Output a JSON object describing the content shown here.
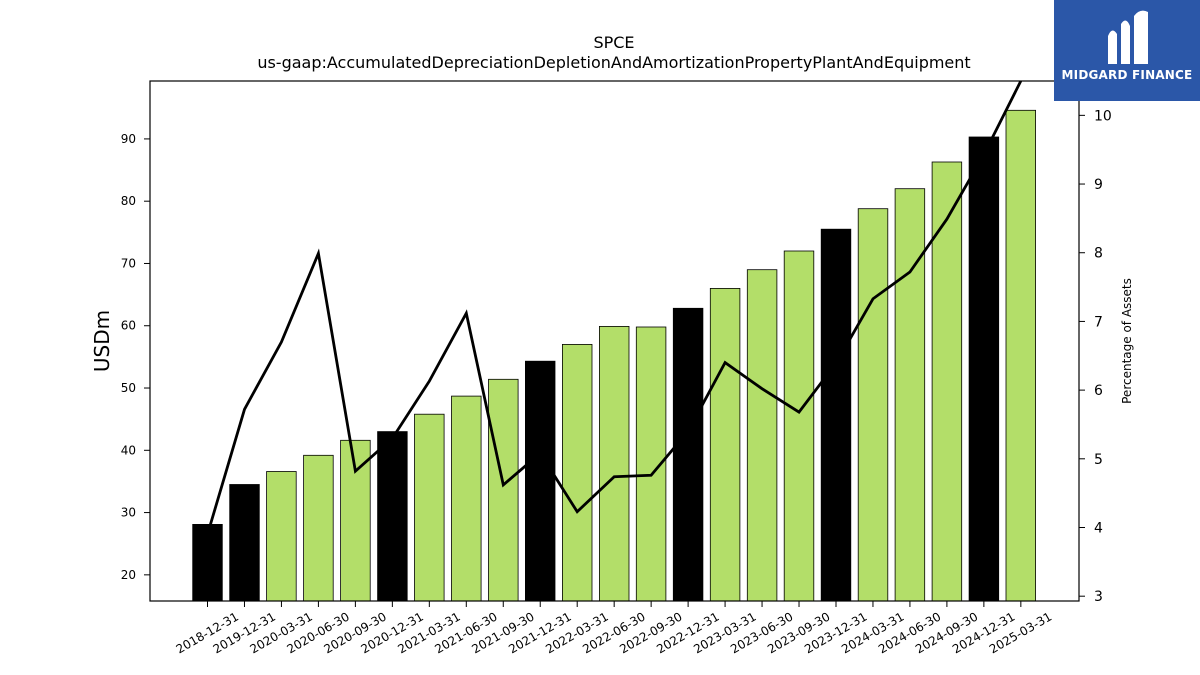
{
  "chart_data": {
    "type": "bar",
    "title": "SPCE",
    "subtitle": "us-gaap:AccumulatedDepreciationDepletionAndAmortizationPropertyPlantAndEquipment",
    "ylabel": "USDm",
    "y2label": "Percentage of Assets",
    "ylim": [
      15.8,
      99.3
    ],
    "y2lim": [
      2.93,
      10.5
    ],
    "yticks": [
      20,
      30,
      40,
      50,
      60,
      70,
      80,
      90
    ],
    "y2ticks": [
      3,
      4,
      5,
      6,
      7,
      8,
      9,
      10
    ],
    "categories": [
      "2018-12-31",
      "2019-12-31",
      "2020-03-31",
      "2020-06-30",
      "2020-09-30",
      "2020-12-31",
      "2021-03-31",
      "2021-06-30",
      "2021-09-30",
      "2021-12-31",
      "2022-03-31",
      "2022-06-30",
      "2022-09-30",
      "2022-12-31",
      "2023-03-31",
      "2023-06-30",
      "2023-09-30",
      "2023-12-31",
      "2024-03-31",
      "2024-06-30",
      "2024-09-30",
      "2024-12-31",
      "2025-03-31"
    ],
    "series": [
      {
        "kind": "bar",
        "values": [
          28.1,
          34.5,
          36.6,
          39.2,
          41.6,
          43.0,
          45.8,
          48.7,
          51.4,
          54.3,
          57.0,
          59.9,
          59.8,
          62.8,
          66.0,
          69.0,
          72.0,
          75.5,
          78.8,
          82.0,
          86.3,
          90.3,
          94.6
        ],
        "annual_flags": [
          true,
          true,
          false,
          false,
          false,
          true,
          false,
          false,
          false,
          true,
          false,
          false,
          false,
          true,
          false,
          false,
          false,
          true,
          false,
          false,
          false,
          true,
          false
        ]
      },
      {
        "kind": "line",
        "axis": "right",
        "values": [
          3.9,
          5.72,
          6.7,
          7.99,
          4.82,
          5.3,
          6.13,
          7.12,
          4.62,
          5.08,
          4.23,
          4.74,
          4.76,
          5.4,
          6.4,
          6.02,
          5.68,
          6.39,
          7.33,
          7.72,
          8.49,
          9.43,
          10.5
        ]
      }
    ],
    "colors": {
      "annual_bar": "#000000",
      "quarter_bar": "#b3de69",
      "line": "#000000"
    },
    "grid": false,
    "legend": "none"
  },
  "brand": {
    "name": "MIDGARD FINANCE",
    "color": "#2b57a8"
  }
}
